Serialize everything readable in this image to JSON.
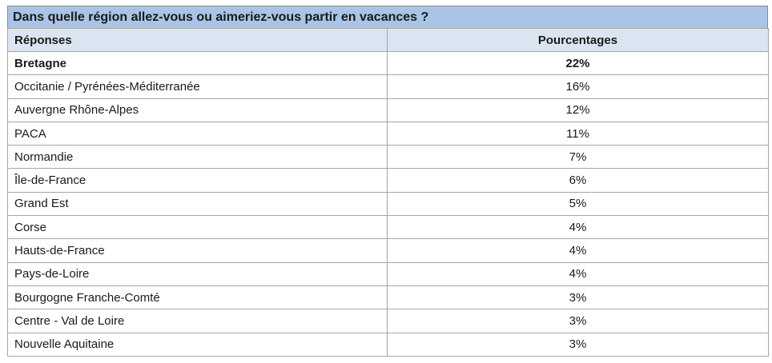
{
  "title": "Dans quelle région allez-vous ou aimeriez-vous partir en vacances ?",
  "columns": [
    "Réponses",
    "Pourcentages"
  ],
  "rows": [
    {
      "region": "Bretagne",
      "pct": "22%"
    },
    {
      "region": "Occitanie / Pyrénées-Méditerranée",
      "pct": "16%"
    },
    {
      "region": "Auvergne Rhône-Alpes",
      "pct": "12%"
    },
    {
      "region": "PACA",
      "pct": "11%"
    },
    {
      "region": "Normandie",
      "pct": "7%"
    },
    {
      "region": "Île-de-France",
      "pct": "6%"
    },
    {
      "region": "Grand Est",
      "pct": "5%"
    },
    {
      "region": "Corse",
      "pct": "4%"
    },
    {
      "region": "Hauts-de-France",
      "pct": "4%"
    },
    {
      "region": "Pays-de-Loire",
      "pct": "4%"
    },
    {
      "region": "Bourgogne Franche-Comté",
      "pct": "3%"
    },
    {
      "region": "Centre - Val de Loire",
      "pct": "3%"
    },
    {
      "region": "Nouvelle Aquitaine",
      "pct": "3%"
    }
  ],
  "chart_data": {
    "type": "table",
    "title": "Dans quelle région allez-vous ou aimeriez-vous partir en vacances ?",
    "columns": [
      "Réponses",
      "Pourcentages"
    ],
    "categories": [
      "Bretagne",
      "Occitanie / Pyrénées-Méditerranée",
      "Auvergne Rhône-Alpes",
      "PACA",
      "Normandie",
      "Île-de-France",
      "Grand Est",
      "Corse",
      "Hauts-de-France",
      "Pays-de-Loire",
      "Bourgogne Franche-Comté",
      "Centre - Val de Loire",
      "Nouvelle Aquitaine"
    ],
    "values": [
      22,
      16,
      12,
      11,
      7,
      6,
      5,
      4,
      4,
      4,
      3,
      3,
      3
    ]
  }
}
